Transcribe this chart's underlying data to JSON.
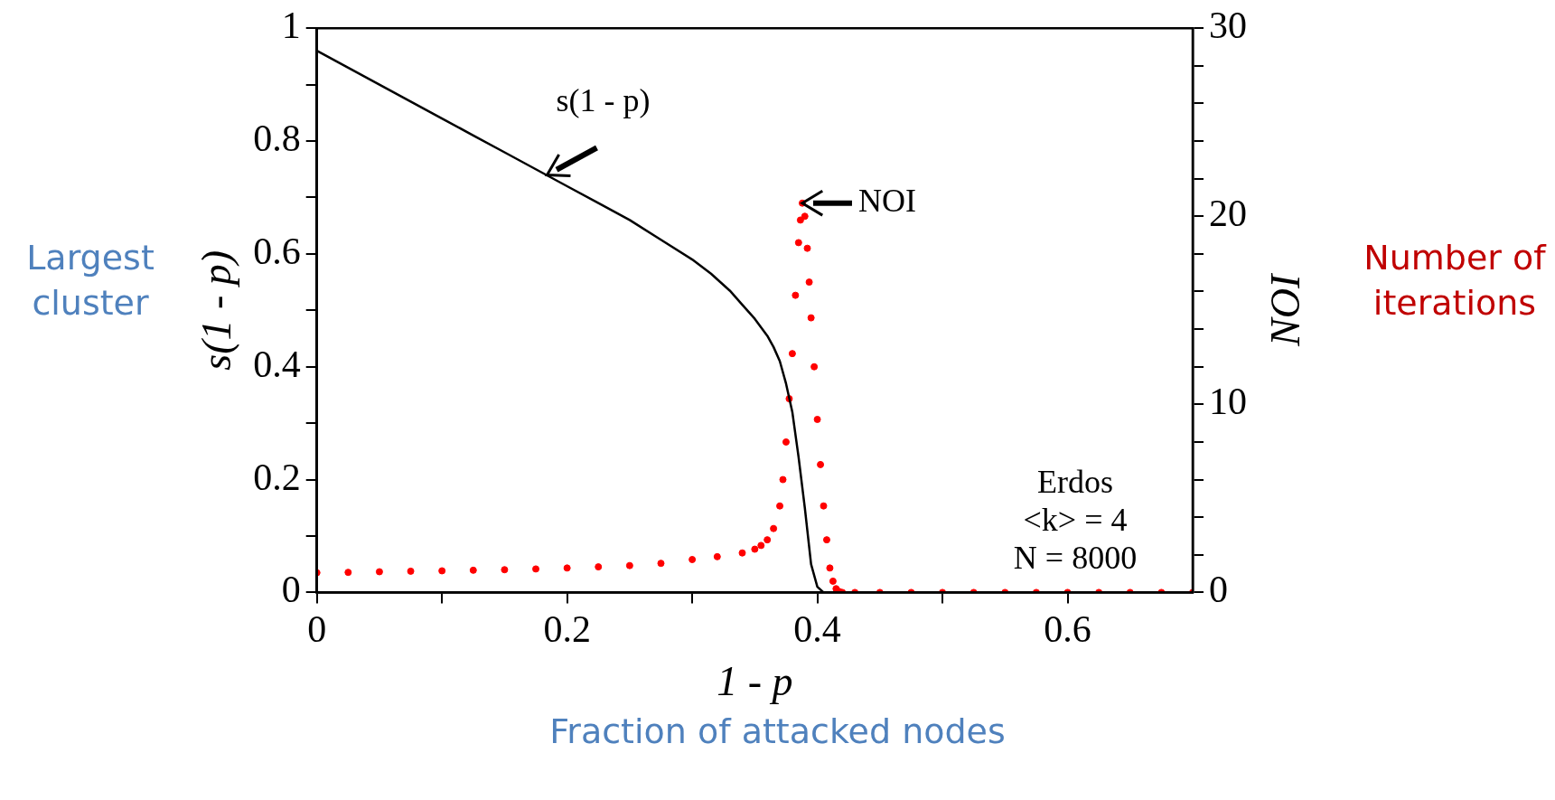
{
  "chart_data": {
    "type": "line",
    "xlabel": "1 - p",
    "ylabel": "s(1 - p)",
    "y2label": "NOI",
    "xlim": [
      0,
      0.7
    ],
    "xticks": [
      0,
      {
        "value": 0.1,
        "label": null
      },
      0.2,
      {
        "value": 0.3,
        "label": null
      },
      0.4,
      {
        "value": 0.5,
        "label": null
      },
      0.6
    ],
    "ylim": [
      0,
      1
    ],
    "yticks": [
      0,
      {
        "value": 0.1,
        "label": null
      },
      0.2,
      {
        "value": 0.3,
        "label": null
      },
      0.4,
      {
        "value": 0.5,
        "label": null
      },
      0.6,
      {
        "value": 0.7,
        "label": null
      },
      0.8,
      {
        "value": 0.9,
        "label": null
      },
      1
    ],
    "y2lim": [
      0,
      30
    ],
    "y2ticks": [
      0,
      {
        "value": 2,
        "label": null
      },
      {
        "value": 4,
        "label": null
      },
      {
        "value": 6,
        "label": null
      },
      {
        "value": 8,
        "label": null
      },
      10,
      {
        "value": 12,
        "label": null
      },
      {
        "value": 14,
        "label": null
      },
      {
        "value": 16,
        "label": null
      },
      {
        "value": 18,
        "label": null
      },
      20,
      {
        "value": 22,
        "label": null
      },
      {
        "value": 24,
        "label": null
      },
      {
        "value": 26,
        "label": null
      },
      {
        "value": 28,
        "label": null
      },
      30
    ],
    "grid": false,
    "legend": false,
    "series": [
      {
        "type": "line",
        "color": "#000000",
        "marker": "none",
        "x": [
          0,
          0.025,
          0.05,
          0.075,
          0.1,
          0.125,
          0.15,
          0.175,
          0.2,
          0.225,
          0.25,
          0.275,
          0.3,
          0.315,
          0.33,
          0.34,
          0.35,
          0.36,
          0.365,
          0.37,
          0.375,
          0.38,
          0.385,
          0.39,
          0.395,
          0.4,
          0.405,
          0.45,
          0.5,
          0.6,
          0.7
        ],
        "values": [
          0.96,
          0.93,
          0.9,
          0.87,
          0.84,
          0.81,
          0.78,
          0.75,
          0.72,
          0.69,
          0.66,
          0.625,
          0.59,
          0.565,
          0.535,
          0.51,
          0.485,
          0.455,
          0.435,
          0.41,
          0.37,
          0.32,
          0.24,
          0.15,
          0.05,
          0.01,
          0,
          0,
          0,
          0,
          0
        ]
      },
      {
        "type": "scatter",
        "color": "#ff0000",
        "marker": "circle",
        "axis": "y2",
        "x": [
          0,
          0.025,
          0.05,
          0.075,
          0.1,
          0.125,
          0.15,
          0.175,
          0.2,
          0.225,
          0.25,
          0.275,
          0.3,
          0.32,
          0.34,
          0.35,
          0.355,
          0.36,
          0.365,
          0.37,
          0.3725,
          0.375,
          0.3775,
          0.38,
          0.3825,
          0.385,
          0.3865,
          0.388,
          0.39,
          0.392,
          0.3935,
          0.395,
          0.3975,
          0.4,
          0.4025,
          0.405,
          0.4075,
          0.41,
          0.4125,
          0.415,
          0.4175,
          0.42,
          0.43,
          0.45,
          0.475,
          0.5,
          0.525,
          0.55,
          0.575,
          0.6,
          0.625,
          0.65,
          0.675,
          0.7
        ],
        "values": [
          1.05,
          1.07,
          1.1,
          1.13,
          1.15,
          1.18,
          1.21,
          1.25,
          1.3,
          1.36,
          1.43,
          1.55,
          1.75,
          1.9,
          2.1,
          2.3,
          2.5,
          2.8,
          3.4,
          4.6,
          6,
          8,
          10.3,
          12.7,
          15.8,
          18.6,
          19.8,
          20.7,
          20,
          18.3,
          16.5,
          14.6,
          12,
          9.2,
          6.8,
          4.6,
          2.8,
          1.3,
          0.6,
          0.2,
          0.05,
          0,
          0,
          0,
          0,
          0,
          0,
          0,
          0,
          0,
          0,
          0,
          0,
          0
        ]
      }
    ],
    "annotations": [
      {
        "text": "s(1 - p)",
        "x": 0.184,
        "y": 0.74
      },
      {
        "text": "NOI",
        "x": 0.388,
        "y": 0.69
      },
      "Erdos",
      "<k> = 4",
      "N = 8000",
      "Largest cluster",
      "Number of iterations",
      "Fraction of attacked nodes"
    ]
  }
}
